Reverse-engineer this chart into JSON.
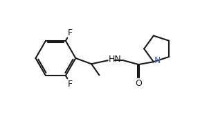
{
  "bg_color": "#ffffff",
  "line_color": "#1a1a1a",
  "N_color": "#4466bb",
  "line_width": 1.5,
  "figsize": [
    3.15,
    1.79
  ],
  "dpi": 100,
  "xlim": [
    -0.3,
    10.0
  ],
  "ylim": [
    -0.5,
    6.0
  ]
}
